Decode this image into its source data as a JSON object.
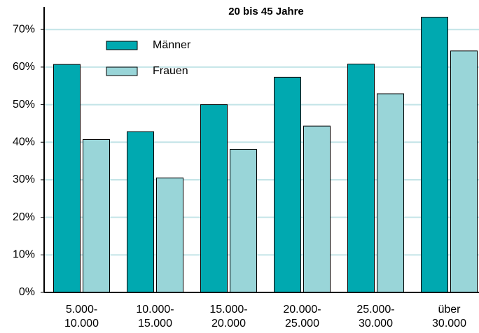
{
  "chart_data": {
    "type": "bar",
    "title": "20 bis 45 Jahre",
    "categories": [
      "5.000-\n10.000",
      "10.000-\n15.000",
      "15.000-\n20.000",
      "20.000-\n25.000",
      "25.000-\n30.000",
      "über\n30.000"
    ],
    "series": [
      {
        "name": "Männer",
        "color": "#00a9b0",
        "values": [
          60.7,
          42.8,
          50.0,
          57.3,
          60.8,
          73.3
        ]
      },
      {
        "name": "Frauen",
        "color": "#99d5d8",
        "values": [
          40.7,
          30.5,
          38.1,
          44.3,
          52.9,
          64.3
        ]
      }
    ],
    "ylim": [
      0,
      76
    ],
    "yticks": [
      {
        "value": 0,
        "label": "0%"
      },
      {
        "value": 10,
        "label": "10%"
      },
      {
        "value": 20,
        "label": "20%"
      },
      {
        "value": 30,
        "label": "30%"
      },
      {
        "value": 40,
        "label": "40%"
      },
      {
        "value": 50,
        "label": "50%"
      },
      {
        "value": 60,
        "label": "60%"
      },
      {
        "value": 70,
        "label": "70%"
      }
    ],
    "grid": true,
    "legend": "upper left"
  }
}
